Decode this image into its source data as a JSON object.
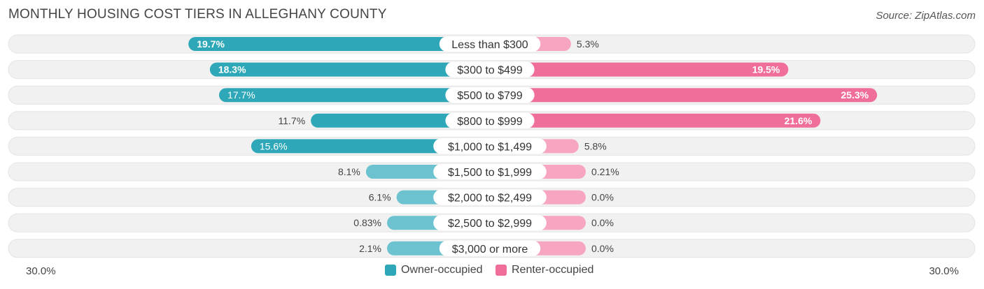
{
  "title": "MONTHLY HOUSING COST TIERS IN ALLEGHANY COUNTY",
  "source": "Source: ZipAtlas.com",
  "axis": {
    "left_label": "30.0%",
    "right_label": "30.0%"
  },
  "legend": {
    "owner_label": "Owner-occupied",
    "renter_label": "Renter-occupied"
  },
  "colors": {
    "owner_strong": "#2ea7b8",
    "owner_light": "#6cc3cf",
    "renter_strong": "#f06e9a",
    "renter_light": "#f7a6c2",
    "row_bg": "#f1f1f1"
  },
  "chart_data": {
    "type": "bar",
    "orientation": "horizontal-diverging",
    "title": "MONTHLY HOUSING COST TIERS IN ALLEGHANY COUNTY",
    "xlim": [
      -30,
      30
    ],
    "categories": [
      "Less than $300",
      "$300 to $499",
      "$500 to $799",
      "$800 to $999",
      "$1,000 to $1,499",
      "$1,500 to $1,999",
      "$2,000 to $2,499",
      "$2,500 to $2,999",
      "$3,000 or more"
    ],
    "series": [
      {
        "name": "Owner-occupied",
        "values": [
          19.7,
          18.3,
          17.7,
          11.7,
          15.6,
          8.1,
          6.1,
          0.83,
          2.1
        ],
        "labels": [
          "19.7%",
          "18.3%",
          "17.7%",
          "11.7%",
          "15.6%",
          "8.1%",
          "6.1%",
          "0.83%",
          "2.1%"
        ]
      },
      {
        "name": "Renter-occupied",
        "values": [
          5.3,
          19.5,
          25.3,
          21.6,
          5.8,
          0.21,
          0.0,
          0.0,
          0.0
        ],
        "labels": [
          "5.3%",
          "19.5%",
          "25.3%",
          "21.6%",
          "5.8%",
          "0.21%",
          "0.0%",
          "0.0%",
          "0.0%"
        ]
      }
    ]
  }
}
